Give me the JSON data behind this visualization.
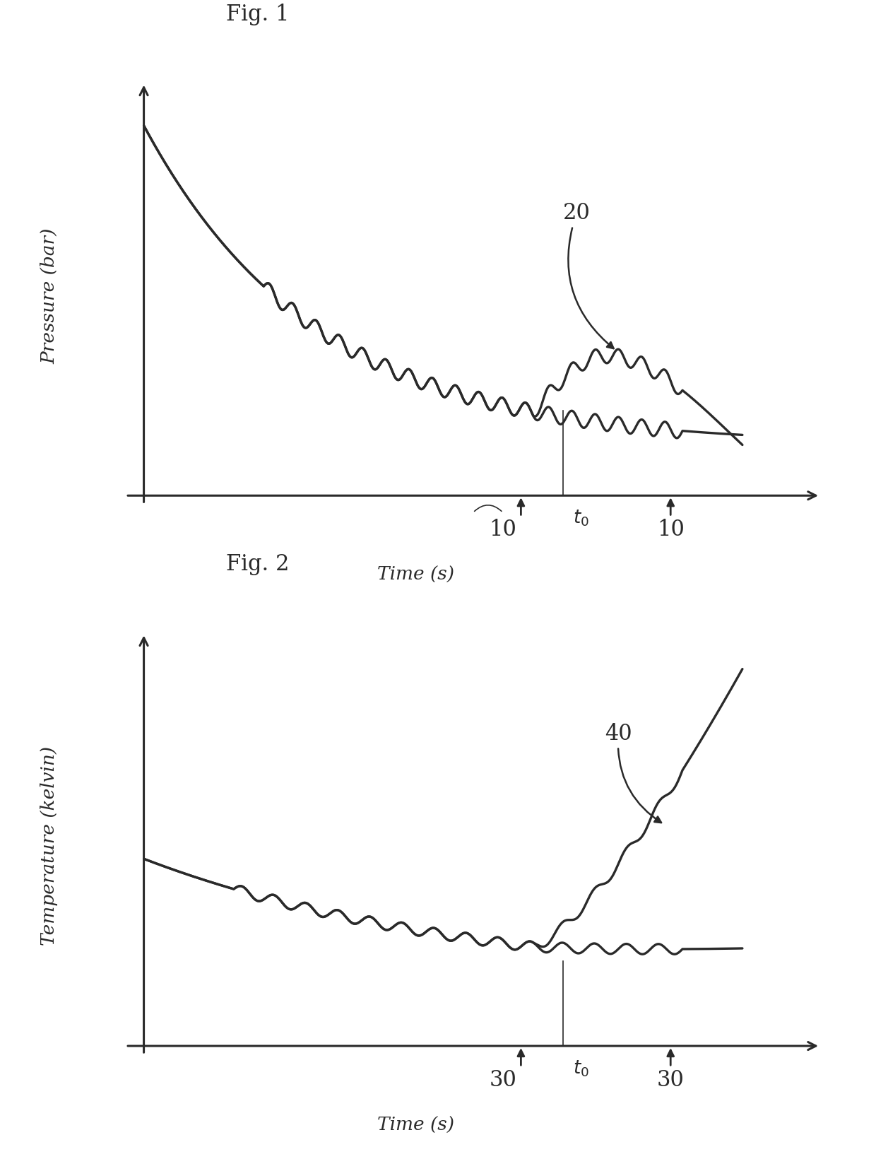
{
  "fig1_title": "Fig. 1",
  "fig2_title": "Fig. 2",
  "fig1_ylabel": "Pressure (bar)",
  "fig2_ylabel": "Temperature (kelvin)",
  "xlabel": "Time (s)",
  "fig1_label20": "20",
  "fig1_label10a": "10",
  "fig1_label10b": "10",
  "fig2_label40": "40",
  "fig2_label30a": "30",
  "fig2_label30b": "30",
  "bg_color": "#ffffff",
  "line_color": "#2a2a2a",
  "axis_color": "#2a2a2a",
  "font_size_title": 22,
  "font_size_label": 19,
  "font_size_annot": 22
}
